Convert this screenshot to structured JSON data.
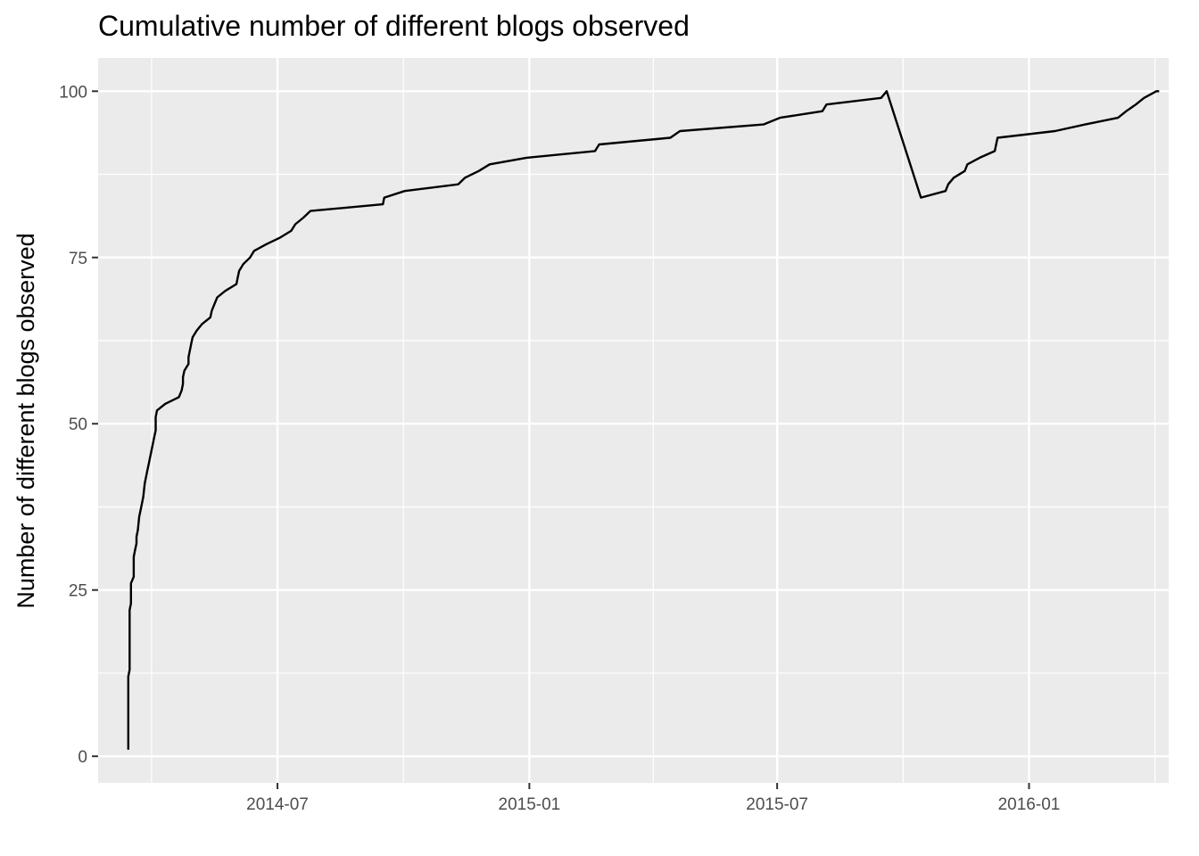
{
  "chart_data": {
    "type": "line",
    "title": "Cumulative number of different blogs observed",
    "xlabel": "",
    "ylabel": "Number of different blogs observed",
    "x_axis_type": "date",
    "xlim": [
      "2014-02-20",
      "2016-04-12"
    ],
    "ylim": [
      -4,
      105
    ],
    "x_ticks": [
      "2014-07",
      "2015-01",
      "2015-07",
      "2016-01"
    ],
    "y_ticks": [
      0,
      25,
      50,
      75,
      100
    ],
    "grid": true,
    "legend": "none",
    "background_color": "#ebebeb",
    "grid_color": "#ffffff",
    "line_color": "#000000",
    "series": [
      {
        "x": [
          "2014-03-14",
          "2014-03-14",
          "2014-03-14",
          "2014-03-14",
          "2014-03-14",
          "2014-03-14",
          "2014-03-14",
          "2014-03-15",
          "2014-03-15",
          "2014-03-15",
          "2014-03-15",
          "2014-03-15",
          "2014-03-15",
          "2014-03-15",
          "2014-03-15",
          "2014-03-15",
          "2014-03-16",
          "2014-03-16",
          "2014-03-16",
          "2014-03-16",
          "2014-03-18",
          "2014-03-18",
          "2014-03-19",
          "2014-03-20",
          "2014-03-20",
          "2014-03-21",
          "2014-03-22",
          "2014-03-24",
          "2014-03-25",
          "2014-03-26",
          "2014-03-28",
          "2014-03-29",
          "2014-03-30",
          "2014-04-01",
          "2014-04-02",
          "2014-04-03",
          "2014-04-03",
          "2014-04-04",
          "2014-04-10",
          "2014-04-20",
          "2014-04-22",
          "2014-04-23",
          "2014-04-23",
          "2014-04-24",
          "2014-04-27",
          "2014-04-27",
          "2014-04-28",
          "2014-04-29",
          "2014-04-30",
          "2014-05-03",
          "2014-05-07",
          "2014-05-13",
          "2014-05-14",
          "2014-05-16",
          "2014-05-18",
          "2014-05-24",
          "2014-06-01",
          "2014-06-02",
          "2014-06-03",
          "2014-06-06",
          "2014-06-11",
          "2014-06-14",
          "2014-06-23",
          "2014-07-03",
          "2014-07-11",
          "2014-07-14",
          "2014-07-20",
          "2014-07-25",
          "2014-09-16",
          "2014-09-17",
          "2014-10-02",
          "2014-11-10",
          "2014-11-15",
          "2014-11-25",
          "2014-12-03",
          "2014-12-30",
          "2015-02-18",
          "2015-02-21",
          "2015-04-14",
          "2015-04-21",
          "2015-06-21",
          "2015-07-03",
          "2015-08-03",
          "2015-08-06",
          "2015-09-15",
          "2015-09-19",
          "2015-10-14",
          "2015-11-01",
          "2015-11-03",
          "2015-11-07",
          "2015-11-15",
          "2015-11-17",
          "2015-11-26",
          "2015-12-07",
          "2015-12-08",
          "2015-12-09",
          "2016-01-20",
          "2016-02-11",
          "2016-03-06",
          "2016-03-12",
          "2016-03-19",
          "2016-03-25",
          "2016-04-03",
          "2016-04-05"
        ],
        "y": [
          1,
          4,
          6,
          7,
          8,
          10,
          12,
          13,
          14,
          16,
          17,
          18,
          19,
          20,
          21,
          22,
          23,
          24,
          25,
          26,
          27,
          30,
          31,
          32,
          33,
          34,
          36,
          38,
          39,
          41,
          43,
          44,
          45,
          47,
          48,
          49,
          51,
          52,
          53,
          54,
          55,
          56,
          57,
          58,
          59,
          60,
          61,
          62,
          63,
          64,
          65,
          66,
          67,
          68,
          69,
          70,
          71,
          72,
          73,
          74,
          75,
          76,
          77,
          78,
          79,
          80,
          81,
          82,
          83,
          84,
          85,
          86,
          87,
          88,
          89,
          90,
          91,
          92,
          93,
          94,
          95,
          96,
          97,
          98,
          99,
          100,
          84,
          85,
          86,
          87,
          88,
          89,
          90,
          91,
          92,
          93,
          94,
          95,
          96,
          97,
          98,
          99,
          100,
          100
        ]
      }
    ]
  }
}
